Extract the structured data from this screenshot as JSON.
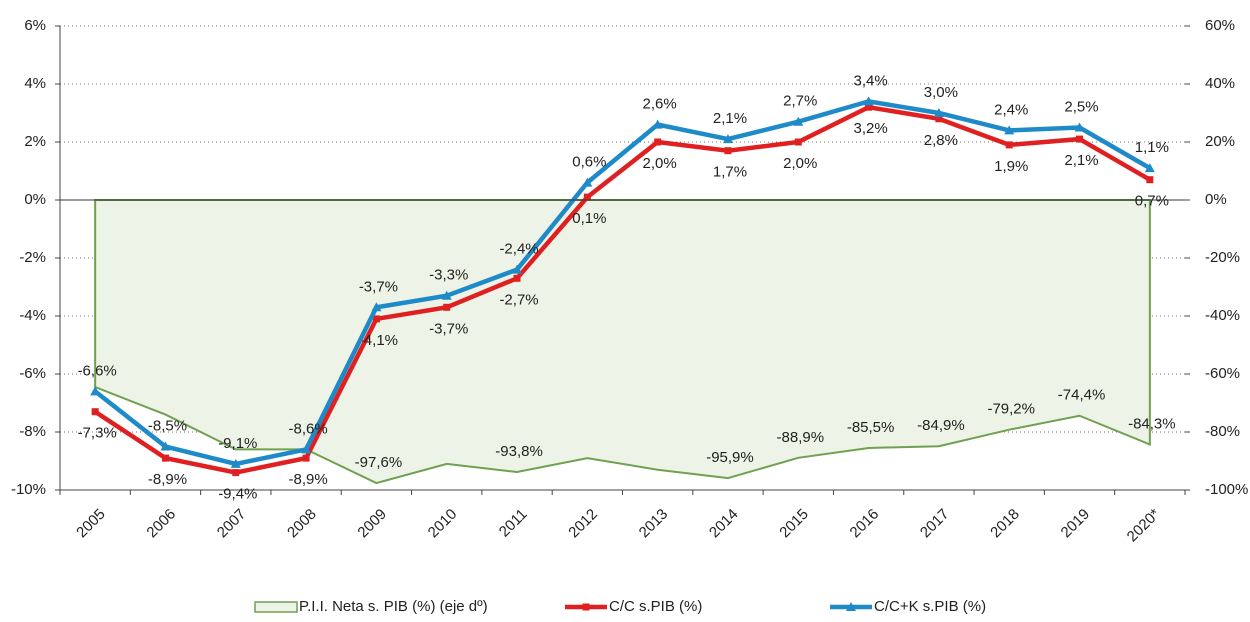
{
  "chart_data": {
    "type": "line",
    "categories": [
      "2005",
      "2006",
      "2007",
      "2008",
      "2009",
      "2010",
      "2011",
      "2012",
      "2013",
      "2014",
      "2015",
      "2016",
      "2017",
      "2018",
      "2019",
      "2020*"
    ],
    "ylim": [
      -10,
      6
    ],
    "yticks": [
      {
        "value": -10,
        "label": "-10%"
      },
      {
        "value": -8,
        "label": "-8%"
      },
      {
        "value": -6,
        "label": "-6%"
      },
      {
        "value": -4,
        "label": "-4%"
      },
      {
        "value": -2,
        "label": "-2%"
      },
      {
        "value": 0,
        "label": "0%"
      },
      {
        "value": 2,
        "label": "2%"
      },
      {
        "value": 4,
        "label": "4%"
      },
      {
        "value": 6,
        "label": "6%"
      }
    ],
    "y2lim": [
      -100,
      60
    ],
    "y2ticks": [
      {
        "value": -100,
        "label": "-100%"
      },
      {
        "value": -80,
        "label": "-80%"
      },
      {
        "value": -60,
        "label": "-60%"
      },
      {
        "value": -40,
        "label": "-40%"
      },
      {
        "value": -20,
        "label": "-20%"
      },
      {
        "value": 0,
        "label": "0%"
      },
      {
        "value": 20,
        "label": "20%"
      },
      {
        "value": 40,
        "label": "40%"
      },
      {
        "value": 60,
        "label": "60%"
      }
    ],
    "grid": true,
    "legend": "bottom",
    "series": [
      {
        "name": "P.I.I. Neta s. PIB (%) (eje dº)",
        "type": "area",
        "axis": "y2",
        "color": "#70a050",
        "fill": "#edf3e6",
        "values": [
          -64.5,
          -74,
          -86,
          -86,
          -97.6,
          -91,
          -93.8,
          -89,
          -93,
          -95.9,
          -88.9,
          -85.5,
          -84.9,
          -79.2,
          -74.4,
          -84.3
        ],
        "value_labels": [
          null,
          null,
          null,
          null,
          "-97,6%",
          null,
          "-93,8%",
          null,
          null,
          "-95,9%",
          "-88,9%",
          "-85,5%",
          "-84,9%",
          "-79,2%",
          "-74,4%",
          "-84,3%"
        ]
      },
      {
        "name": "C/C s.PIB (%)",
        "color": "#e02020",
        "marker": "square",
        "values": [
          -7.3,
          -8.9,
          -9.4,
          -8.9,
          -4.1,
          -3.7,
          -2.7,
          0.1,
          2.0,
          1.7,
          2.0,
          3.2,
          2.8,
          1.9,
          2.1,
          0.7
        ],
        "value_labels": [
          "-7,3%",
          "-8,9%",
          "-9,4%",
          "-8,9%",
          "-4,1%",
          "-3,7%",
          "-2,7%",
          "0,1%",
          "2,0%",
          "1,7%",
          "2,0%",
          "3,2%",
          "2,8%",
          "1,9%",
          "2,1%",
          "0,7%"
        ]
      },
      {
        "name": "C/C+K s.PIB (%)",
        "color": "#1f8ac8",
        "marker": "triangle",
        "values": [
          -6.6,
          -8.5,
          -9.1,
          -8.6,
          -3.7,
          -3.3,
          -2.4,
          0.6,
          2.6,
          2.1,
          2.7,
          3.4,
          3.0,
          2.4,
          2.5,
          1.1
        ],
        "value_labels": [
          "-6,6%",
          "-8,5%",
          "-9,1%",
          "-8,6%",
          "-3,7%",
          "-3,3%",
          "-2,4%",
          "0,6%",
          "2,6%",
          "2,1%",
          "2,7%",
          "3,4%",
          "3,0%",
          "2,4%",
          "2,5%",
          "1,1%"
        ]
      }
    ]
  }
}
